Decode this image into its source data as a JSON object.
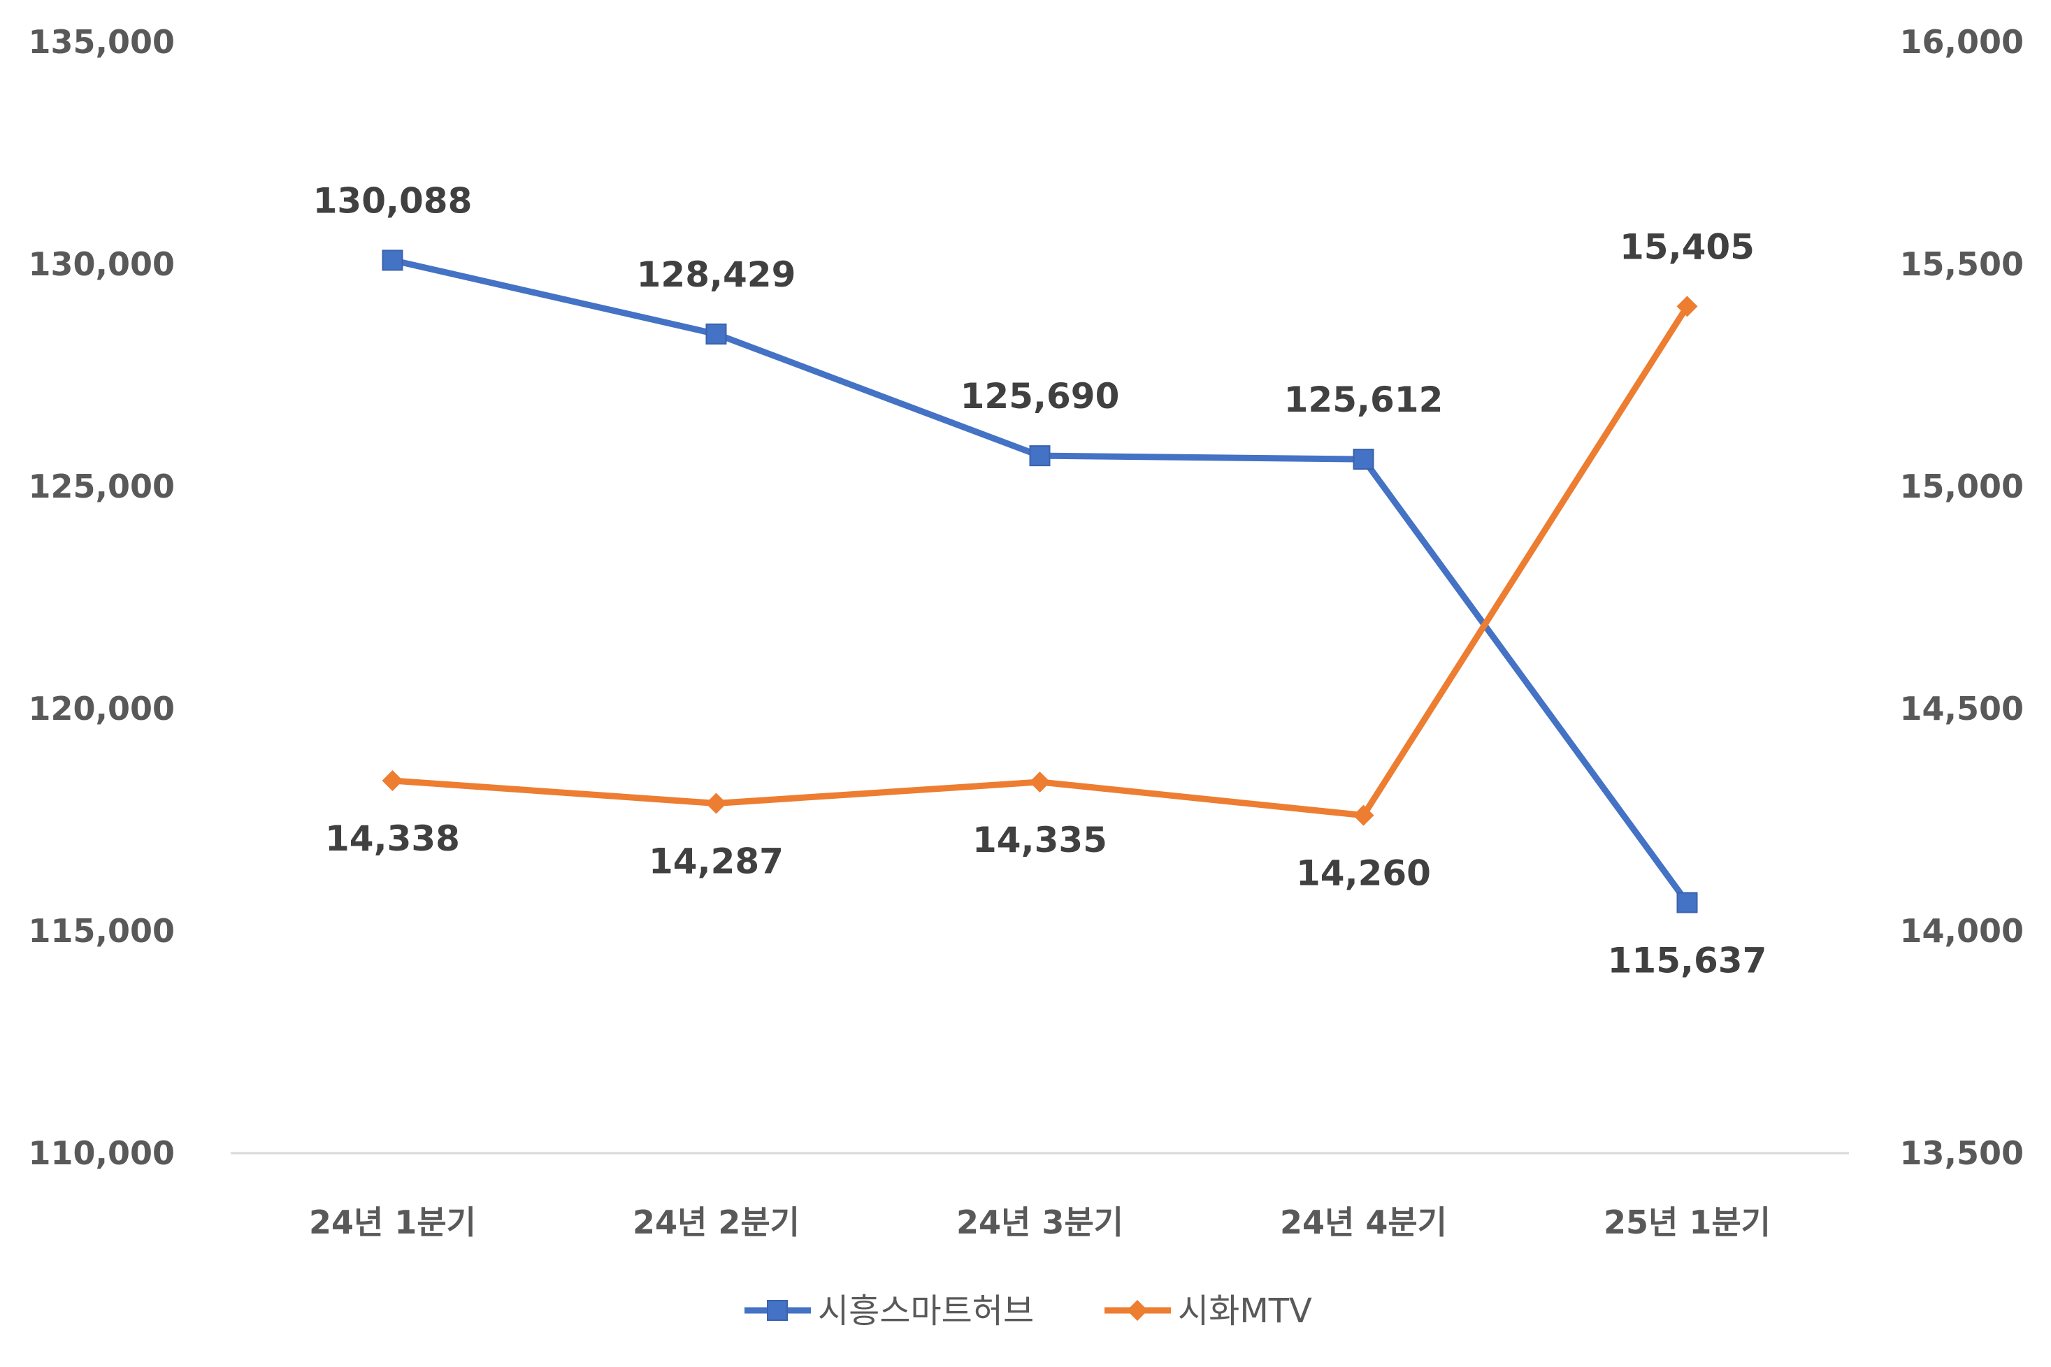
{
  "chart_data": {
    "type": "line",
    "categories": [
      "24년 1분기",
      "24년 2분기",
      "24년 3분기",
      "24년 4분기",
      "25년 1분기"
    ],
    "series": [
      {
        "name": "시흥스마트허브",
        "axis": "left",
        "color": "#4472C4",
        "marker": "square",
        "values": [
          130088,
          128429,
          125690,
          125612,
          115637
        ],
        "labels": [
          "130,088",
          "128,429",
          "125,690",
          "125,612",
          "115,637"
        ],
        "label_position": [
          "above",
          "above",
          "above",
          "above",
          "below"
        ]
      },
      {
        "name": "시화MTV",
        "axis": "right",
        "color": "#ED7D31",
        "marker": "diamond",
        "values": [
          14338,
          14287,
          14335,
          14260,
          15405
        ],
        "labels": [
          "14,338",
          "14,287",
          "14,335",
          "14,260",
          "15,405"
        ],
        "label_position": [
          "below",
          "below",
          "below",
          "below",
          "above"
        ]
      }
    ],
    "y_left": {
      "range": [
        110000,
        135000
      ],
      "ticks": [
        110000,
        115000,
        120000,
        125000,
        130000,
        135000
      ],
      "tick_labels": [
        "110,000",
        "115,000",
        "120,000",
        "125,000",
        "130,000",
        "135,000"
      ]
    },
    "y_right": {
      "range": [
        13500,
        16000
      ],
      "ticks": [
        13500,
        14000,
        14500,
        15000,
        15500,
        16000
      ],
      "tick_labels": [
        "13,500",
        "14,000",
        "14,500",
        "15,000",
        "15,500",
        "16,000"
      ]
    },
    "grid": false,
    "legend_position": "bottom"
  }
}
